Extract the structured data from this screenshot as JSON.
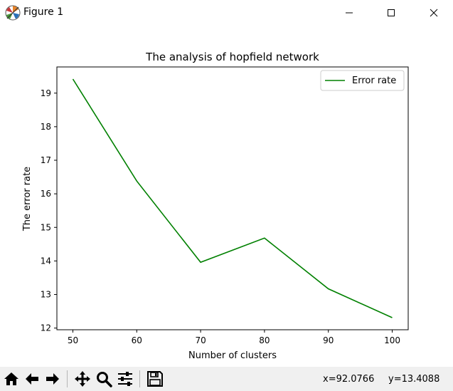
{
  "window": {
    "title": "Figure 1",
    "icon": "matplotlib-logo-icon",
    "controls": [
      "minimize-icon",
      "maximize-icon",
      "close-icon"
    ]
  },
  "chart_data": {
    "type": "line",
    "title": "The analysis of hopfield network",
    "xlabel": "Number of clusters",
    "ylabel": "The error rate",
    "x": [
      50,
      60,
      70,
      80,
      90,
      100
    ],
    "series": [
      {
        "name": "Error rate",
        "color": "#008000",
        "values": [
          19.42,
          16.38,
          13.96,
          14.68,
          13.17,
          12.31
        ]
      }
    ],
    "xlim": [
      47.5,
      102.5
    ],
    "ylim": [
      11.95,
      19.78
    ],
    "xticks": [
      50,
      60,
      70,
      80,
      90,
      100
    ],
    "yticks": [
      12,
      13,
      14,
      15,
      16,
      17,
      18,
      19
    ],
    "grid": false,
    "legend": "top-right"
  },
  "toolbar": {
    "buttons": [
      {
        "name": "home-button",
        "icon": "home-icon"
      },
      {
        "name": "back-button",
        "icon": "arrow-left-icon"
      },
      {
        "name": "forward-button",
        "icon": "arrow-right-icon"
      },
      {
        "name": "pan-button",
        "icon": "move-icon"
      },
      {
        "name": "zoom-button",
        "icon": "magnifier-icon"
      },
      {
        "name": "configure-subplots-button",
        "icon": "sliders-icon"
      },
      {
        "name": "save-button",
        "icon": "floppy-disk-icon"
      }
    ],
    "coords": {
      "x": "x=92.0766",
      "y": "y=13.4088"
    }
  }
}
